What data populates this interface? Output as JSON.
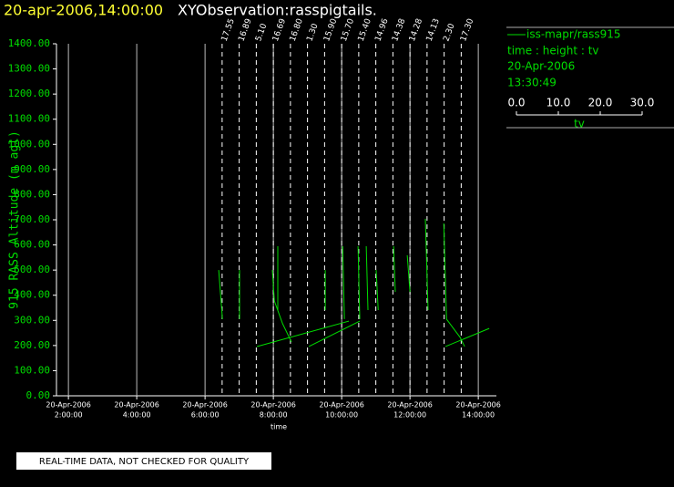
{
  "chart_data": {
    "type": "line",
    "title": "20-apr-2006,14:00:00",
    "subtitle": "XYObservation:rasspigtails.",
    "xlabel": "time",
    "ylabel": "915 RASS Altitude (m agl)",
    "xlim": [
      1.65,
      14.53
    ],
    "ylim": [
      0,
      1400
    ],
    "xticks": [
      {
        "value": 2,
        "label": [
          "20-Apr-2006",
          "2:00:00"
        ]
      },
      {
        "value": 4,
        "label": [
          "20-Apr-2006",
          "4:00:00"
        ]
      },
      {
        "value": 6,
        "label": [
          "20-Apr-2006",
          "6:00:00"
        ]
      },
      {
        "value": 8,
        "label": [
          "20-Apr-2006",
          "8:00:00"
        ]
      },
      {
        "value": 10,
        "label": [
          "20-Apr-2006",
          "10:00:00"
        ]
      },
      {
        "value": 12,
        "label": [
          "20-Apr-2006",
          "12:00:00"
        ]
      },
      {
        "value": 14,
        "label": [
          "20-Apr-2006",
          "14:00:00"
        ]
      }
    ],
    "yticks": [
      {
        "value": 0,
        "label": "0.00"
      },
      {
        "value": 100,
        "label": "100.00"
      },
      {
        "value": 200,
        "label": "200.00"
      },
      {
        "value": 300,
        "label": "300.00"
      },
      {
        "value": 400,
        "label": "400.00"
      },
      {
        "value": 500,
        "label": "500.00"
      },
      {
        "value": 600,
        "label": "600.00"
      },
      {
        "value": 700,
        "label": "700.00"
      },
      {
        "value": 800,
        "label": "800.00"
      },
      {
        "value": 900,
        "label": "900.00"
      },
      {
        "value": 1000,
        "label": "1000.00"
      },
      {
        "value": 1100,
        "label": "1100.00"
      },
      {
        "value": 1200,
        "label": "1200.00"
      },
      {
        "value": 1300,
        "label": "1300.00"
      },
      {
        "value": 1400,
        "label": "1400.00"
      }
    ],
    "grid": true,
    "profiles": {
      "x": [
        6.5,
        7.0,
        7.5,
        8.0,
        8.5,
        9.0,
        9.5,
        10.0,
        10.5,
        11.0,
        11.5,
        12.0,
        12.5,
        13.0,
        13.5
      ],
      "labels": [
        "17.55",
        "16.89",
        "5.10",
        "16.69",
        "16.80",
        "1.30",
        "15.90",
        "15.70",
        "15.40",
        "14.96",
        "14.38",
        "14.28",
        "14.13",
        "2.30",
        "17.30"
      ]
    },
    "series": [
      {
        "name": "iss-mapr/rass915",
        "color": "#00dd00",
        "x": [
          6.4,
          6.51,
          null,
          7.01,
          7.01,
          null,
          7.52,
          10.21,
          null,
          7.97,
          8.03,
          8.27,
          8.53,
          null,
          8.13,
          8.13,
          null,
          9.04,
          10.53,
          null,
          9.52,
          9.52,
          null,
          10.03,
          10.08,
          null,
          10.48,
          10.53,
          null,
          10.72,
          10.77,
          null,
          11.01,
          11.07,
          null,
          11.52,
          11.57,
          null,
          11.92,
          12.0,
          null,
          12.45,
          12.53,
          null,
          12.99,
          13.07,
          13.47,
          13.6,
          null,
          13.04,
          14.32
        ],
        "values": [
          500,
          305,
          null,
          500,
          305,
          null,
          196,
          297,
          null,
          500,
          377,
          287,
          214,
          null,
          595,
          341,
          null,
          196,
          297,
          null,
          500,
          341,
          null,
          595,
          305,
          null,
          595,
          305,
          null,
          595,
          341,
          null,
          500,
          341,
          null,
          595,
          413,
          null,
          559,
          413,
          null,
          704,
          341,
          null,
          686,
          305,
          232,
          196,
          null,
          196,
          268
        ]
      }
    ],
    "legend_info": [
      "time : height : tv",
      "20-Apr-2006",
      "13:30:49"
    ],
    "tv_scale": {
      "label": "tv",
      "ticks": [
        {
          "value": 0,
          "label": "0.0"
        },
        {
          "value": 10,
          "label": "10.0"
        },
        {
          "value": 20,
          "label": "20.0"
        },
        {
          "value": 30,
          "label": "30.0"
        }
      ]
    },
    "footer": "REAL-TIME DATA, NOT CHECKED FOR QUALITY"
  }
}
